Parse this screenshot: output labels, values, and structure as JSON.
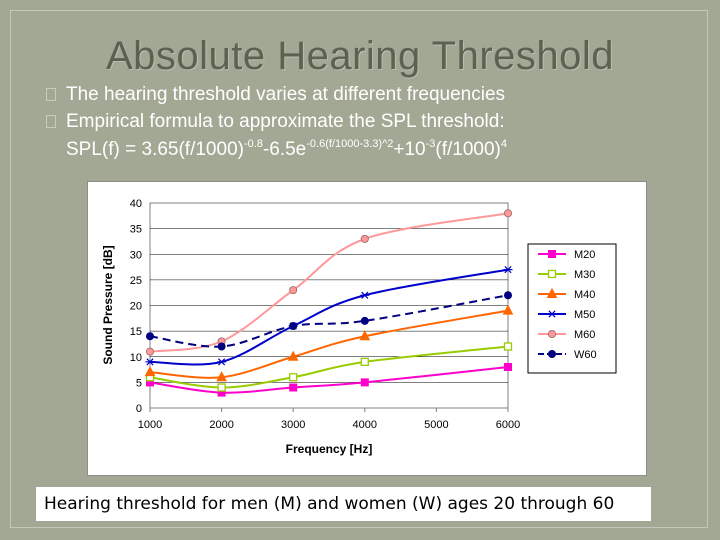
{
  "slide": {
    "title": "Absolute Hearing Threshold",
    "bullets": [
      "The hearing threshold varies at different frequencies",
      "Empirical formula to approximate the SPL threshold:"
    ],
    "formula": {
      "p1": "SPL(f) = 3.65(f/1000)",
      "s1": "-0.8",
      "p2": "-6.5e",
      "s2": "-0.6(f/1000-3.3)^2",
      "p3": "+10",
      "s3": "-3",
      "p4": "(f/1000)",
      "s4": "4"
    },
    "caption": "Hearing threshold for men (M) and women (W) ages 20 through 60"
  },
  "chart_data": {
    "type": "line",
    "title": "",
    "xlabel": "Frequency [Hz]",
    "ylabel": "Sound Pressure [dB]",
    "x": [
      1000,
      2000,
      3000,
      4000,
      6000
    ],
    "xticks": [
      1000,
      2000,
      3000,
      4000,
      5000,
      6000
    ],
    "xticklabels": [
      "1000",
      "2000",
      "3000",
      "4000",
      "5000",
      "6000"
    ],
    "xlim": [
      1000,
      6000
    ],
    "ylim": [
      0,
      40
    ],
    "yticks": [
      0,
      5,
      10,
      15,
      20,
      25,
      30,
      35,
      40
    ],
    "yticklabels": [
      "0",
      "5",
      "10",
      "15",
      "20",
      "25",
      "30",
      "35",
      "40"
    ],
    "grid": "horizontal",
    "legend": "right",
    "series": [
      {
        "name": "M20",
        "values": [
          5,
          3,
          4,
          5,
          8
        ],
        "color": "#ff00cc",
        "marker": "square",
        "dashed": false
      },
      {
        "name": "M30",
        "values": [
          6,
          4,
          6,
          9,
          12
        ],
        "color": "#99cc00",
        "marker": "square-open",
        "dashed": false
      },
      {
        "name": "M40",
        "values": [
          7,
          6,
          10,
          14,
          19
        ],
        "color": "#ff6600",
        "marker": "triangle",
        "dashed": false
      },
      {
        "name": "M50",
        "values": [
          9,
          9,
          16,
          22,
          27
        ],
        "color": "#0000cc",
        "marker": "asterisk",
        "dashed": false
      },
      {
        "name": "M60",
        "values": [
          11,
          13,
          23,
          33,
          38
        ],
        "color": "#ff9999",
        "marker": "circle",
        "dashed": false
      },
      {
        "name": "W60",
        "values": [
          14,
          12,
          16,
          17,
          22
        ],
        "color": "#000080",
        "marker": "circle",
        "dashed": true
      }
    ]
  }
}
